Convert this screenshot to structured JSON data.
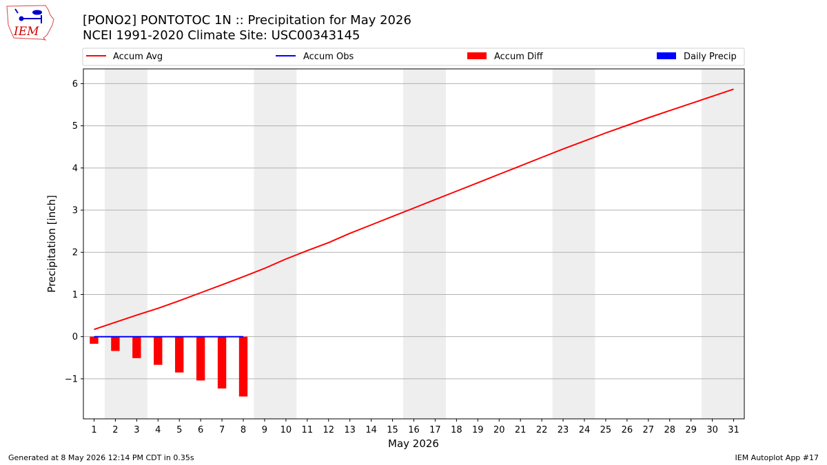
{
  "title": {
    "line1": "[PONO2] PONTOTOC 1N :: Precipitation for May 2026",
    "line2": "NCEI 1991-2020 Climate Site: USC00343145"
  },
  "logo": {
    "text": "IEM"
  },
  "footer": {
    "left": "Generated at 8 May 2026 12:14 PM CDT in 0.35s",
    "right": "IEM Autoplot App #17"
  },
  "chart_data": {
    "type": "line",
    "xlabel": "May 2026",
    "ylabel": "Precipitation [inch]",
    "x": [
      1,
      2,
      3,
      4,
      5,
      6,
      7,
      8,
      9,
      10,
      11,
      12,
      13,
      14,
      15,
      16,
      17,
      18,
      19,
      20,
      21,
      22,
      23,
      24,
      25,
      26,
      27,
      28,
      29,
      30,
      31
    ],
    "xlim": [
      0.5,
      31.5
    ],
    "ylim": [
      -1.95,
      6.35
    ],
    "yticks": [
      -1,
      0,
      1,
      2,
      3,
      4,
      5,
      6
    ],
    "ytick_labels": [
      "−1",
      "0",
      "1",
      "2",
      "3",
      "4",
      "5",
      "6"
    ],
    "grid": "horizontal",
    "legend_position": "top",
    "weekend_bands": [
      [
        1.5,
        3.5
      ],
      [
        8.5,
        10.5
      ],
      [
        15.5,
        17.5
      ],
      [
        22.5,
        24.5
      ],
      [
        29.5,
        31.5
      ]
    ],
    "series": [
      {
        "name": "Accum Avg",
        "kind": "line",
        "color": "#ff0000",
        "x": [
          1,
          2,
          3,
          4,
          5,
          6,
          7,
          8,
          9,
          10,
          11,
          12,
          13,
          14,
          15,
          16,
          17,
          18,
          19,
          20,
          21,
          22,
          23,
          24,
          25,
          26,
          27,
          28,
          29,
          30,
          31
        ],
        "values": [
          0.17,
          0.34,
          0.51,
          0.67,
          0.85,
          1.04,
          1.23,
          1.42,
          1.62,
          1.84,
          2.04,
          2.23,
          2.45,
          2.65,
          2.85,
          3.05,
          3.25,
          3.45,
          3.65,
          3.85,
          4.05,
          4.25,
          4.45,
          4.64,
          4.83,
          5.01,
          5.19,
          5.36,
          5.53,
          5.7,
          5.87
        ]
      },
      {
        "name": "Accum Obs",
        "kind": "line",
        "color": "#0000ff",
        "x": [
          1,
          2,
          3,
          4,
          5,
          6,
          7,
          8
        ],
        "values": [
          0,
          0,
          0,
          0,
          0,
          0,
          0,
          0
        ]
      },
      {
        "name": "Accum Diff",
        "kind": "bar",
        "color": "#ff0000",
        "x": [
          1,
          2,
          3,
          4,
          5,
          6,
          7,
          8
        ],
        "values": [
          -0.17,
          -0.34,
          -0.51,
          -0.67,
          -0.85,
          -1.04,
          -1.23,
          -1.42
        ]
      },
      {
        "name": "Daily Precip",
        "kind": "bar",
        "color": "#0000ff",
        "x": [
          1,
          2,
          3,
          4,
          5,
          6,
          7,
          8
        ],
        "values": [
          0,
          0,
          0,
          0,
          0,
          0,
          0,
          0
        ]
      }
    ]
  }
}
